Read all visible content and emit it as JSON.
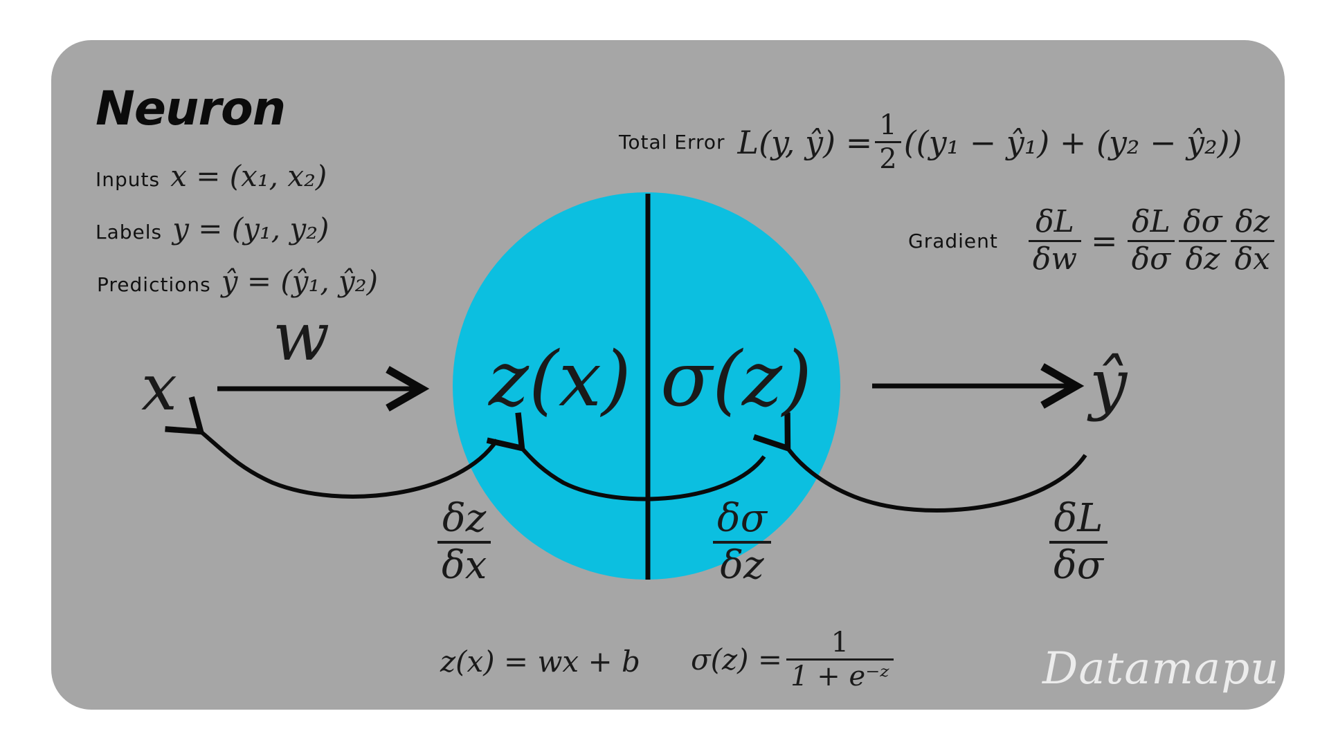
{
  "title": "Neuron",
  "definitions": {
    "inputs_label": "Inputs",
    "inputs_eq": "x = (x₁, x₂)",
    "labels_label": "Labels",
    "labels_eq": "y = (y₁, y₂)",
    "predictions_label": "Predictions",
    "predictions_eq": "ŷ = (ŷ₁, ŷ₂)"
  },
  "total_error": {
    "label": "Total Error",
    "lhs": "L(y, ŷ) =",
    "frac_num": "1",
    "frac_den": "2",
    "rhs": "((y₁ − ŷ₁) + (y₂ − ŷ₂))"
  },
  "gradient": {
    "label": "Gradient",
    "lhs_num": "δL",
    "lhs_den": "δw",
    "equals": "=",
    "terms": [
      {
        "num": "δL",
        "den": "δσ"
      },
      {
        "num": "δσ",
        "den": "δz"
      },
      {
        "num": "δz",
        "den": "δx"
      }
    ]
  },
  "diagram": {
    "input": "x",
    "weight": "w",
    "z_fn": "z(x)",
    "sigma_fn": "σ(z)",
    "output": "ŷ",
    "neuron_color": "#0cbfe0",
    "back_dz_dx": {
      "num": "δz",
      "den": "δx"
    },
    "back_dsigma_dz": {
      "num": "δσ",
      "den": "δz"
    },
    "back_dL_dsigma": {
      "num": "δL",
      "den": "δσ"
    }
  },
  "formulas": {
    "z_eq": "z(x) = wx + b",
    "sigma_lhs": "σ(z) =",
    "sigma_num": "1",
    "sigma_den": "1 + e⁻ᶻ"
  },
  "watermark": "Datamapu"
}
